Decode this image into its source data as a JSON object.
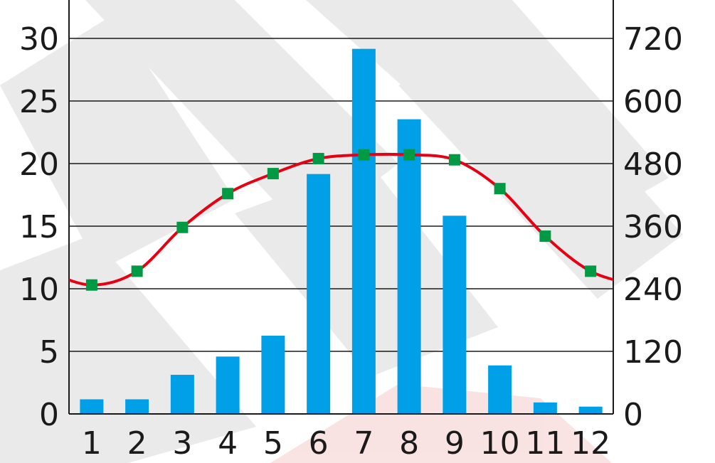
{
  "chart_data": {
    "type": "bar",
    "categories": [
      "1",
      "2",
      "3",
      "4",
      "5",
      "6",
      "7",
      "8",
      "9",
      "10",
      "11",
      "12"
    ],
    "series": [
      {
        "type": "bar",
        "axis": "right",
        "color": "#00a0e9",
        "values": [
          28,
          28,
          75,
          110,
          150,
          460,
          700,
          565,
          380,
          93,
          22,
          14
        ]
      },
      {
        "type": "line",
        "axis": "left",
        "color": "#e60012",
        "marker_color": "#009944",
        "values": [
          10.3,
          11.4,
          14.9,
          17.6,
          19.2,
          20.4,
          20.7,
          20.7,
          20.3,
          18.0,
          14.2,
          11.4
        ]
      }
    ],
    "y_left": {
      "min": 0,
      "max": 30,
      "ticks": [
        "0",
        "5",
        "10",
        "15",
        "20",
        "25",
        "30"
      ]
    },
    "y_right": {
      "min": 0,
      "max": 720,
      "ticks": [
        "0",
        "120",
        "240",
        "360",
        "480",
        "600",
        "720"
      ]
    },
    "grid": true,
    "watermark_color": "#d9d9d9"
  }
}
